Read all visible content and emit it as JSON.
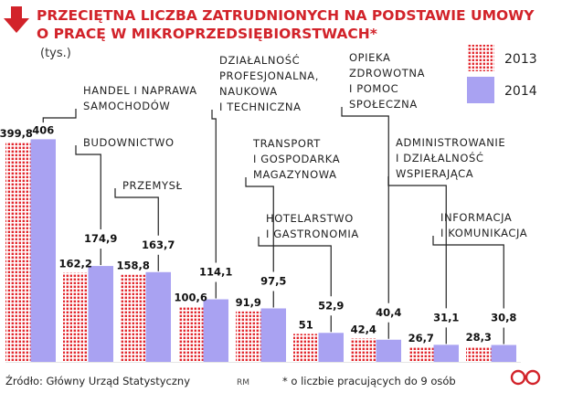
{
  "header": {
    "title_line1": "PRZECIĘTNA LICZBA ZATRUDNIONYCH NA PODSTAWIE UMOWY",
    "title_line2": "O PRACĘ W MIKROPRZEDSIĘBIORSTWACH*",
    "units": "(tys.)"
  },
  "legend": {
    "items": [
      {
        "label": "2013",
        "pattern": "dotted-red"
      },
      {
        "label": "2014",
        "color": "#a9a2f2"
      }
    ]
  },
  "footer": {
    "source": "Źródło: Główny Urząd Statystyczny",
    "author": "RM",
    "note": "* o liczbie pracujących do 9 osób",
    "logo": "DGP"
  },
  "colors": {
    "title": "#d2232a",
    "bar_2013_dots": "#e2282e",
    "bar_2014": "#a9a2f2",
    "leader": "#222222"
  },
  "icons": {
    "title_arrow": "down-arrow-icon"
  },
  "chart_data": {
    "type": "bar",
    "orientation": "vertical",
    "ylabel": "tys.",
    "categories": [
      [
        "HANDEL I NAPRAWA",
        "SAMOCHODÓW"
      ],
      [
        "BUDOWNICTWO"
      ],
      [
        "PRZEMYSŁ"
      ],
      [
        "DZIAŁALNOŚĆ",
        "PROFESJONALNA,",
        "NAUKOWA",
        "I TECHNICZNA"
      ],
      [
        "TRANSPORT",
        "I GOSPODARKA",
        "MAGAZYNOWA"
      ],
      [
        "HOTELARSTWO",
        "I GASTRONOMIA"
      ],
      [
        "OPIEKA",
        "ZDROWOTNA",
        "I POMOC",
        "SPOŁECZNA"
      ],
      [
        "ADMINISTROWANIE",
        "I DZIAŁALNOŚĆ",
        "WSPIERAJĄCA"
      ],
      [
        "INFORMACJA",
        "I KOMUNIKACJA"
      ]
    ],
    "series": [
      {
        "name": "2013",
        "values": [
          399.8,
          162.2,
          158.8,
          100.6,
          91.9,
          51,
          42.4,
          26.7,
          28.3
        ],
        "labels": [
          "399,8",
          "162,2",
          "158,8",
          "100,6",
          "91,9",
          "51",
          "42,4",
          "26,7",
          "28,3"
        ]
      },
      {
        "name": "2014",
        "values": [
          406,
          174.9,
          163.7,
          114.1,
          97.5,
          52.9,
          40.4,
          31.1,
          30.8
        ],
        "labels": [
          "406",
          "174,9",
          "163,7",
          "114,1",
          "97,5",
          "52,9",
          "40,4",
          "31,1",
          "30,8"
        ]
      }
    ],
    "legend_position": "top-right",
    "grid": false
  }
}
